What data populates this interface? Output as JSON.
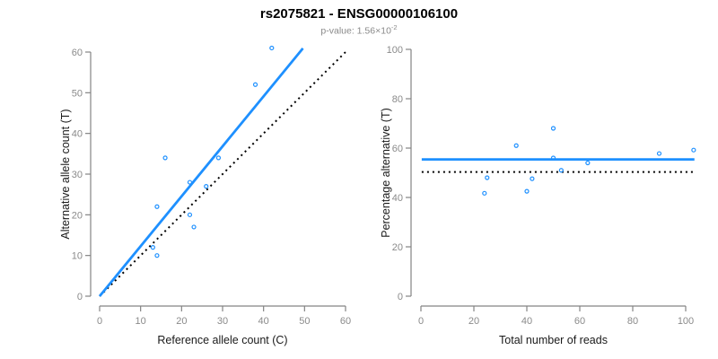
{
  "header": {
    "title": "rs2075821 - ENSG00000106100",
    "p_value_prefix": "p-value: ",
    "p_value_base": "1.56×10",
    "p_value_exponent": "-2"
  },
  "colors": {
    "accent_blue": "#1E90FF",
    "dotted_black": "#000000",
    "axis_gray": "#848484",
    "tick_label_gray": "#8a8a8a",
    "axis_title_dark": "#1a1a1a"
  },
  "chart_data": [
    {
      "type": "scatter",
      "title": "",
      "xlabel": "Reference allele count (C)",
      "ylabel": "Alternative allele count (T)",
      "xlim": [
        0,
        60
      ],
      "ylim": [
        0,
        60
      ],
      "xticks": [
        0,
        10,
        20,
        30,
        40,
        50,
        60
      ],
      "yticks": [
        0,
        10,
        20,
        30,
        40,
        50,
        60
      ],
      "grid": false,
      "legend": "none",
      "marker": "open-circle",
      "points": [
        [
          13,
          12
        ],
        [
          14,
          10
        ],
        [
          14,
          22
        ],
        [
          16,
          34
        ],
        [
          22,
          20
        ],
        [
          22,
          28
        ],
        [
          23,
          17
        ],
        [
          26,
          27
        ],
        [
          29,
          34
        ],
        [
          38,
          52
        ],
        [
          42,
          61
        ]
      ],
      "lines": [
        {
          "name": "identity-line",
          "style": "dotted",
          "color": "#000000",
          "x": [
            0,
            60.5
          ],
          "y": [
            0,
            60.5
          ]
        },
        {
          "name": "fit-line",
          "style": "solid",
          "color": "#1E90FF",
          "x": [
            0,
            49.6
          ],
          "y": [
            0,
            60.9
          ]
        }
      ]
    },
    {
      "type": "scatter",
      "title": "",
      "xlabel": "Total number of reads",
      "ylabel": "Percentage alternative (T)",
      "xlim": [
        0,
        100
      ],
      "ylim": [
        0,
        100
      ],
      "xticks": [
        0,
        20,
        40,
        60,
        80,
        100
      ],
      "yticks": [
        0,
        20,
        40,
        60,
        80,
        100
      ],
      "grid": false,
      "legend": "none",
      "marker": "open-circle",
      "points": [
        [
          24,
          41.7
        ],
        [
          25,
          48
        ],
        [
          36,
          61
        ],
        [
          40,
          42.5
        ],
        [
          42,
          47.6
        ],
        [
          50,
          56
        ],
        [
          50,
          68
        ],
        [
          53,
          51
        ],
        [
          63,
          54
        ],
        [
          90,
          57.8
        ],
        [
          103,
          59.2
        ]
      ],
      "lines": [
        {
          "name": "null-line",
          "style": "dotted",
          "color": "#000000",
          "x": [
            0.3,
            103.3
          ],
          "y": [
            50.3,
            50.3
          ]
        },
        {
          "name": "mean-line",
          "style": "solid",
          "color": "#1E90FF",
          "x": [
            0.3,
            103.3
          ],
          "y": [
            55.4,
            55.4
          ]
        }
      ]
    }
  ]
}
